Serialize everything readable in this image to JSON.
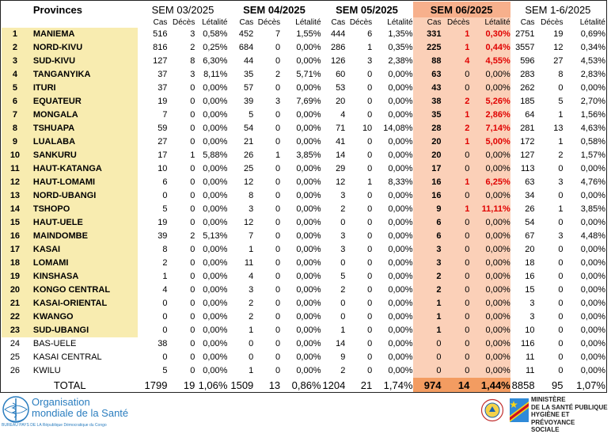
{
  "header": {
    "provinces_label": "Provinces",
    "weeks": [
      "SEM 03/2025",
      "SEM 04/2025",
      "SEM 05/2025",
      "SEM 06/2025",
      "SEM 1-6/2025"
    ],
    "subheaders": [
      "Cas",
      "Décès",
      "Létalité"
    ]
  },
  "rows": [
    {
      "n": "1",
      "prov": "MANIEMA",
      "v": [
        [
          "516",
          "3",
          "0,58%"
        ],
        [
          "452",
          "7",
          "1,55%"
        ],
        [
          "444",
          "6",
          "1,35%"
        ],
        [
          "331",
          "1",
          "0,30%"
        ],
        [
          "2751",
          "19",
          "0,69%"
        ]
      ]
    },
    {
      "n": "2",
      "prov": "NORD-KIVU",
      "v": [
        [
          "816",
          "2",
          "0,25%"
        ],
        [
          "684",
          "0",
          "0,00%"
        ],
        [
          "286",
          "1",
          "0,35%"
        ],
        [
          "225",
          "1",
          "0,44%"
        ],
        [
          "3557",
          "12",
          "0,34%"
        ]
      ]
    },
    {
      "n": "3",
      "prov": "SUD-KIVU",
      "v": [
        [
          "127",
          "8",
          "6,30%"
        ],
        [
          "44",
          "0",
          "0,00%"
        ],
        [
          "126",
          "3",
          "2,38%"
        ],
        [
          "88",
          "4",
          "4,55%"
        ],
        [
          "596",
          "27",
          "4,53%"
        ]
      ]
    },
    {
      "n": "4",
      "prov": "TANGANYIKA",
      "v": [
        [
          "37",
          "3",
          "8,11%"
        ],
        [
          "35",
          "2",
          "5,71%"
        ],
        [
          "60",
          "0",
          "0,00%"
        ],
        [
          "63",
          "0",
          "0,00%"
        ],
        [
          "283",
          "8",
          "2,83%"
        ]
      ]
    },
    {
      "n": "5",
      "prov": "ITURI",
      "v": [
        [
          "37",
          "0",
          "0,00%"
        ],
        [
          "57",
          "0",
          "0,00%"
        ],
        [
          "53",
          "0",
          "0,00%"
        ],
        [
          "43",
          "0",
          "0,00%"
        ],
        [
          "262",
          "0",
          "0,00%"
        ]
      ]
    },
    {
      "n": "6",
      "prov": "EQUATEUR",
      "v": [
        [
          "19",
          "0",
          "0,00%"
        ],
        [
          "39",
          "3",
          "7,69%"
        ],
        [
          "20",
          "0",
          "0,00%"
        ],
        [
          "38",
          "2",
          "5,26%"
        ],
        [
          "185",
          "5",
          "2,70%"
        ]
      ]
    },
    {
      "n": "7",
      "prov": "MONGALA",
      "v": [
        [
          "7",
          "0",
          "0,00%"
        ],
        [
          "5",
          "0",
          "0,00%"
        ],
        [
          "4",
          "0",
          "0,00%"
        ],
        [
          "35",
          "1",
          "2,86%"
        ],
        [
          "64",
          "1",
          "1,56%"
        ]
      ]
    },
    {
      "n": "8",
      "prov": "TSHUAPA",
      "v": [
        [
          "59",
          "0",
          "0,00%"
        ],
        [
          "54",
          "0",
          "0,00%"
        ],
        [
          "71",
          "10",
          "14,08%"
        ],
        [
          "28",
          "2",
          "7,14%"
        ],
        [
          "281",
          "13",
          "4,63%"
        ]
      ]
    },
    {
      "n": "9",
      "prov": "LUALABA",
      "v": [
        [
          "27",
          "0",
          "0,00%"
        ],
        [
          "21",
          "0",
          "0,00%"
        ],
        [
          "41",
          "0",
          "0,00%"
        ],
        [
          "20",
          "1",
          "5,00%"
        ],
        [
          "172",
          "1",
          "0,58%"
        ]
      ]
    },
    {
      "n": "10",
      "prov": "SANKURU",
      "v": [
        [
          "17",
          "1",
          "5,88%"
        ],
        [
          "26",
          "1",
          "3,85%"
        ],
        [
          "14",
          "0",
          "0,00%"
        ],
        [
          "20",
          "0",
          "0,00%"
        ],
        [
          "127",
          "2",
          "1,57%"
        ]
      ]
    },
    {
      "n": "11",
      "prov": "HAUT-KATANGA",
      "v": [
        [
          "10",
          "0",
          "0,00%"
        ],
        [
          "25",
          "0",
          "0,00%"
        ],
        [
          "29",
          "0",
          "0,00%"
        ],
        [
          "17",
          "0",
          "0,00%"
        ],
        [
          "113",
          "0",
          "0,00%"
        ]
      ]
    },
    {
      "n": "12",
      "prov": "HAUT-LOMAMI",
      "v": [
        [
          "6",
          "0",
          "0,00%"
        ],
        [
          "12",
          "0",
          "0,00%"
        ],
        [
          "12",
          "1",
          "8,33%"
        ],
        [
          "16",
          "1",
          "6,25%"
        ],
        [
          "63",
          "3",
          "4,76%"
        ]
      ]
    },
    {
      "n": "13",
      "prov": "NORD-UBANGI",
      "v": [
        [
          "0",
          "0",
          "0,00%"
        ],
        [
          "8",
          "0",
          "0,00%"
        ],
        [
          "3",
          "0",
          "0,00%"
        ],
        [
          "16",
          "0",
          "0,00%"
        ],
        [
          "34",
          "0",
          "0,00%"
        ]
      ]
    },
    {
      "n": "14",
      "prov": "TSHOPO",
      "v": [
        [
          "5",
          "0",
          "0,00%"
        ],
        [
          "3",
          "0",
          "0,00%"
        ],
        [
          "2",
          "0",
          "0,00%"
        ],
        [
          "9",
          "1",
          "11,11%"
        ],
        [
          "26",
          "1",
          "3,85%"
        ]
      ]
    },
    {
      "n": "15",
      "prov": "HAUT-UELE",
      "v": [
        [
          "19",
          "0",
          "0,00%"
        ],
        [
          "12",
          "0",
          "0,00%"
        ],
        [
          "0",
          "0",
          "0,00%"
        ],
        [
          "6",
          "0",
          "0,00%"
        ],
        [
          "54",
          "0",
          "0,00%"
        ]
      ]
    },
    {
      "n": "16",
      "prov": "MAINDOMBE",
      "v": [
        [
          "39",
          "2",
          "5,13%"
        ],
        [
          "7",
          "0",
          "0,00%"
        ],
        [
          "3",
          "0",
          "0,00%"
        ],
        [
          "6",
          "0",
          "0,00%"
        ],
        [
          "67",
          "3",
          "4,48%"
        ]
      ]
    },
    {
      "n": "17",
      "prov": "KASAI",
      "v": [
        [
          "8",
          "0",
          "0,00%"
        ],
        [
          "1",
          "0",
          "0,00%"
        ],
        [
          "3",
          "0",
          "0,00%"
        ],
        [
          "3",
          "0",
          "0,00%"
        ],
        [
          "20",
          "0",
          "0,00%"
        ]
      ]
    },
    {
      "n": "18",
      "prov": "LOMAMI",
      "v": [
        [
          "2",
          "0",
          "0,00%"
        ],
        [
          "11",
          "0",
          "0,00%"
        ],
        [
          "0",
          "0",
          "0,00%"
        ],
        [
          "3",
          "0",
          "0,00%"
        ],
        [
          "18",
          "0",
          "0,00%"
        ]
      ]
    },
    {
      "n": "19",
      "prov": "KINSHASA",
      "v": [
        [
          "1",
          "0",
          "0,00%"
        ],
        [
          "4",
          "0",
          "0,00%"
        ],
        [
          "5",
          "0",
          "0,00%"
        ],
        [
          "2",
          "0",
          "0,00%"
        ],
        [
          "16",
          "0",
          "0,00%"
        ]
      ]
    },
    {
      "n": "20",
      "prov": "KONGO CENTRAL",
      "v": [
        [
          "4",
          "0",
          "0,00%"
        ],
        [
          "3",
          "0",
          "0,00%"
        ],
        [
          "2",
          "0",
          "0,00%"
        ],
        [
          "2",
          "0",
          "0,00%"
        ],
        [
          "15",
          "0",
          "0,00%"
        ]
      ]
    },
    {
      "n": "21",
      "prov": "KASAI-ORIENTAL",
      "v": [
        [
          "0",
          "0",
          "0,00%"
        ],
        [
          "2",
          "0",
          "0,00%"
        ],
        [
          "0",
          "0",
          "0,00%"
        ],
        [
          "1",
          "0",
          "0,00%"
        ],
        [
          "3",
          "0",
          "0,00%"
        ]
      ]
    },
    {
      "n": "22",
      "prov": "KWANGO",
      "v": [
        [
          "0",
          "0",
          "0,00%"
        ],
        [
          "2",
          "0",
          "0,00%"
        ],
        [
          "0",
          "0",
          "0,00%"
        ],
        [
          "1",
          "0",
          "0,00%"
        ],
        [
          "3",
          "0",
          "0,00%"
        ]
      ]
    },
    {
      "n": "23",
      "prov": "SUD-UBANGI",
      "v": [
        [
          "0",
          "0",
          "0,00%"
        ],
        [
          "1",
          "0",
          "0,00%"
        ],
        [
          "1",
          "0",
          "0,00%"
        ],
        [
          "1",
          "0",
          "0,00%"
        ],
        [
          "10",
          "0",
          "0,00%"
        ]
      ]
    },
    {
      "n": "24",
      "prov": "BAS-UELE",
      "v": [
        [
          "38",
          "0",
          "0,00%"
        ],
        [
          "0",
          "0",
          "0,00%"
        ],
        [
          "14",
          "0",
          "0,00%"
        ],
        [
          "0",
          "0",
          "0,00%"
        ],
        [
          "116",
          "0",
          "0,00%"
        ]
      ]
    },
    {
      "n": "25",
      "prov": "KASAI CENTRAL",
      "v": [
        [
          "0",
          "0",
          "0,00%"
        ],
        [
          "0",
          "0",
          "0,00%"
        ],
        [
          "9",
          "0",
          "0,00%"
        ],
        [
          "0",
          "0",
          "0,00%"
        ],
        [
          "11",
          "0",
          "0,00%"
        ]
      ]
    },
    {
      "n": "26",
      "prov": "KWILU",
      "v": [
        [
          "5",
          "0",
          "0,00%"
        ],
        [
          "1",
          "0",
          "0,00%"
        ],
        [
          "2",
          "0",
          "0,00%"
        ],
        [
          "0",
          "0",
          "0,00%"
        ],
        [
          "11",
          "0",
          "0,00%"
        ]
      ]
    }
  ],
  "highlight_rows": 23,
  "total": {
    "label": "TOTAL",
    "v": [
      [
        "1799",
        "19",
        "1,06%"
      ],
      [
        "1509",
        "13",
        "0,86%"
      ],
      [
        "1204",
        "21",
        "1,74%"
      ],
      [
        "974",
        "14",
        "1,44%"
      ],
      [
        "8858",
        "95",
        "1,07%"
      ]
    ]
  },
  "footer": {
    "who_line1": "Organisation",
    "who_line2": "mondiale de la Santé",
    "who_sub": "BUREAU PAYS DE LA  République Démocratique du Congo",
    "ministry": [
      "MINISTÈRE",
      "DE LA SANTÉ PUBLIQUE",
      "HYGIÈNE ET PRÉVOYANCE",
      "SOCIALE"
    ]
  },
  "colors": {
    "highlight": "#f8ecb0",
    "week06_header": "#f7b08c",
    "week06_cells": "#fbd0b8",
    "week06_total": "#f39c61",
    "red": "#e00000",
    "who_blue": "#2a7dbf"
  }
}
